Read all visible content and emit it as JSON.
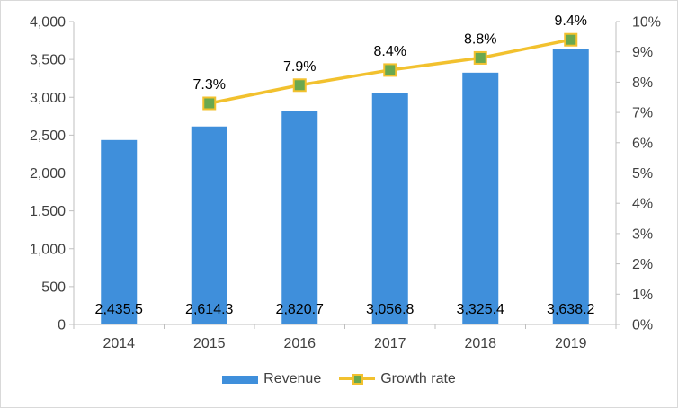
{
  "colors": {
    "revenue_bar": "#3f8fdb",
    "growth_line": "#f2c12e",
    "growth_marker_fill": "#6aa84f",
    "axis": "#bfbfbf",
    "grid": "#d9d9d9"
  },
  "chart_data": {
    "type": "bar",
    "categories": [
      "2014",
      "2015",
      "2016",
      "2017",
      "2018",
      "2019"
    ],
    "series": [
      {
        "name": "Revenue",
        "type": "bar",
        "axis": "left",
        "values": [
          2435.5,
          2614.3,
          2820.7,
          3056.8,
          3325.4,
          3638.2
        ],
        "labels": [
          "2,435.5",
          "2,614.3",
          "2,820.7",
          "3,056.8",
          "3,325.4",
          "3,638.2"
        ]
      },
      {
        "name": "Growth rate",
        "type": "line",
        "axis": "right",
        "values": [
          null,
          7.3,
          7.9,
          8.4,
          8.8,
          9.4
        ],
        "labels": [
          "",
          "7.3%",
          "7.9%",
          "8.4%",
          "8.8%",
          "9.4%"
        ]
      }
    ],
    "y_left": {
      "range": [
        0,
        4000
      ],
      "ticks": [
        0,
        500,
        1000,
        1500,
        2000,
        2500,
        3000,
        3500,
        4000
      ],
      "tick_labels": [
        "0",
        "500",
        "1,000",
        "1,500",
        "2,000",
        "2,500",
        "3,000",
        "3,500",
        "4,000"
      ]
    },
    "y_right": {
      "range": [
        0,
        10
      ],
      "ticks": [
        0,
        1,
        2,
        3,
        4,
        5,
        6,
        7,
        8,
        9,
        10
      ],
      "tick_labels": [
        "0%",
        "1%",
        "2%",
        "3%",
        "4%",
        "5%",
        "6%",
        "7%",
        "8%",
        "9%",
        "10%"
      ]
    },
    "title": "",
    "xlabel": "",
    "ylabel": "",
    "grid": false,
    "legend_position": "bottom"
  }
}
